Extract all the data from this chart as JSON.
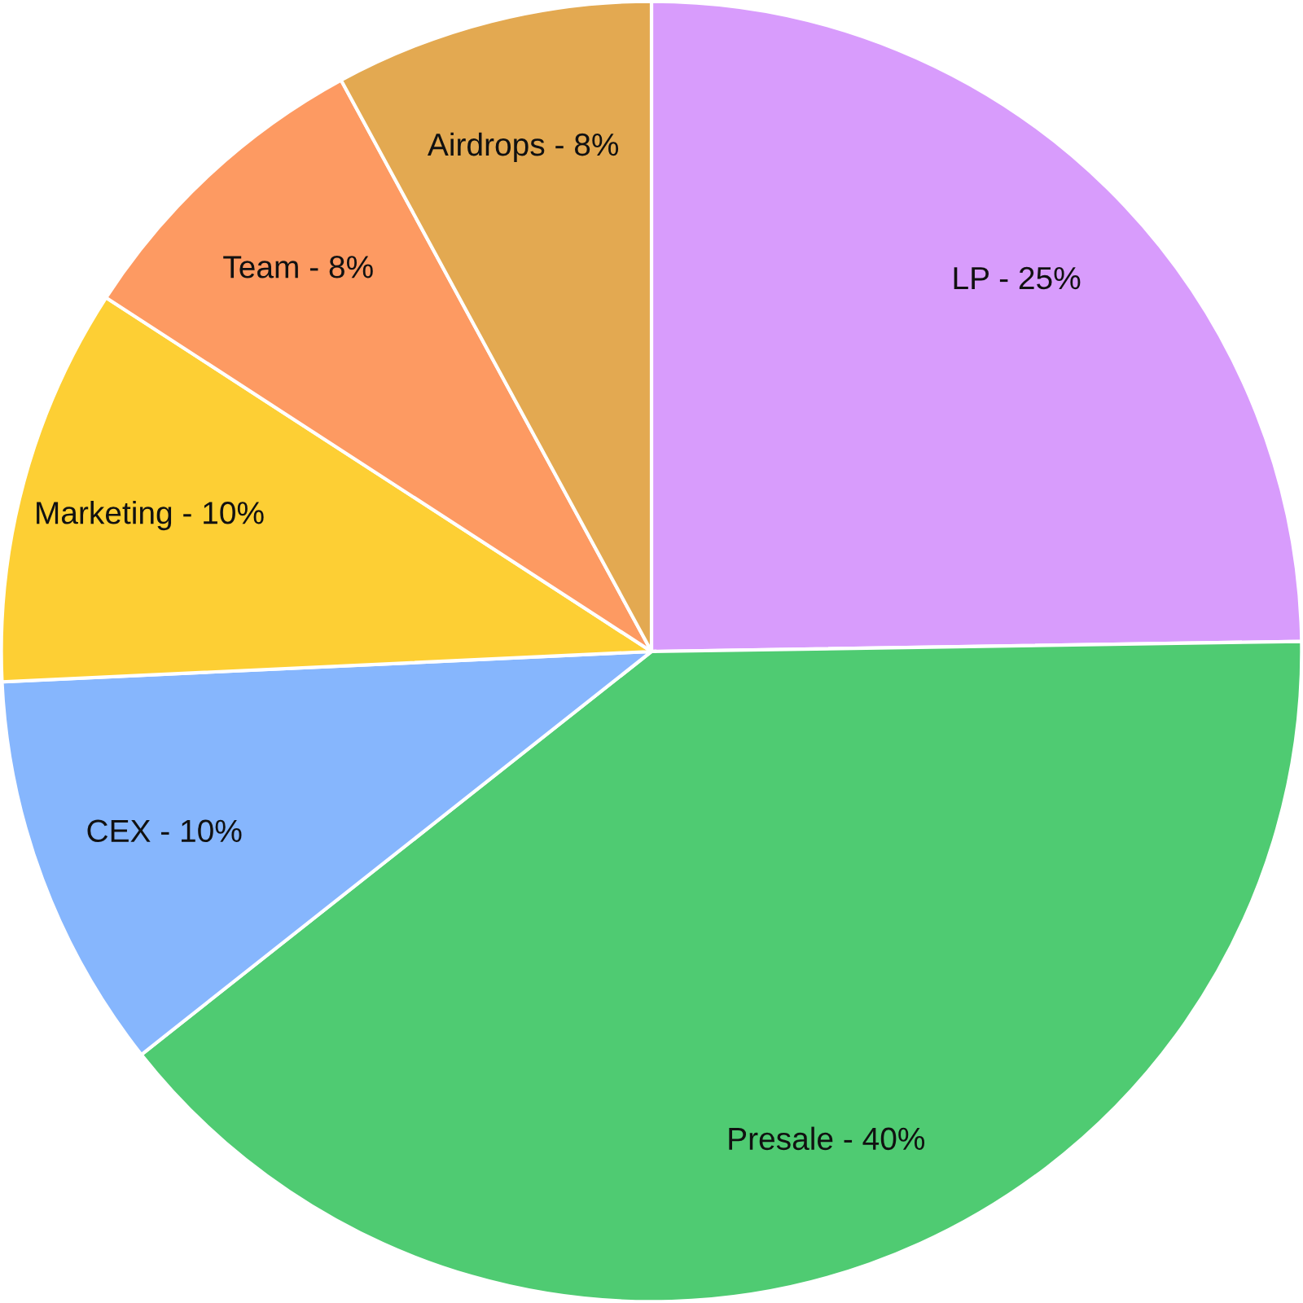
{
  "chart_data": {
    "type": "pie",
    "categories": [
      "LP - 25%",
      "Presale - 40%",
      "CEX - 10%",
      "Marketing - 10%",
      "Team - 8%",
      "Airdrops - 8%"
    ],
    "values": [
      25,
      40,
      10,
      10,
      8,
      8
    ],
    "colors": [
      "#d89cfc",
      "#4fcb72",
      "#86b6fd",
      "#fdcf34",
      "#fd9a62",
      "#e3a951"
    ]
  }
}
